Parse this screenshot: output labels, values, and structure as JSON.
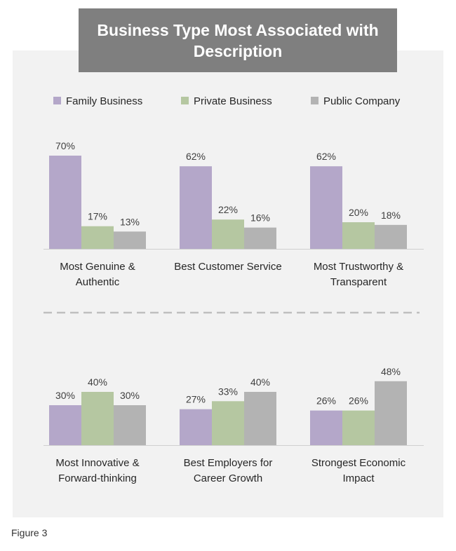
{
  "chart_data": {
    "type": "bar",
    "title": "Business Type Most Associated with Description",
    "title_lines": [
      "Business Type Most Associated with",
      "Description"
    ],
    "series": [
      {
        "name": "Family Business",
        "color": "#b4a7c9"
      },
      {
        "name": "Private Business",
        "color": "#b5c7a1"
      },
      {
        "name": "Public Company",
        "color": "#b3b3b3"
      }
    ],
    "value_suffix": "%",
    "ylim": [
      0,
      100
    ],
    "groups": [
      {
        "label_lines": [
          "Most Genuine &",
          "Authentic"
        ],
        "values": [
          70,
          17,
          13
        ]
      },
      {
        "label_lines": [
          "Best Customer Service"
        ],
        "values": [
          62,
          22,
          16
        ]
      },
      {
        "label_lines": [
          "Most Trustworthy &",
          "Transparent"
        ],
        "values": [
          62,
          20,
          18
        ]
      },
      {
        "label_lines": [
          "Most Innovative &",
          "Forward-thinking"
        ],
        "values": [
          30,
          40,
          30
        ]
      },
      {
        "label_lines": [
          "Best Employers for",
          "Career Growth"
        ],
        "values": [
          27,
          33,
          40
        ]
      },
      {
        "label_lines": [
          "Strongest Economic",
          "Impact"
        ],
        "values": [
          26,
          26,
          48
        ]
      }
    ]
  },
  "caption": "Figure 3",
  "colors": {
    "panel": "#f2f2f2",
    "title_bg": "#7f7f7f",
    "axis": "#d0d0d0",
    "divider": "#bfbfbf"
  }
}
